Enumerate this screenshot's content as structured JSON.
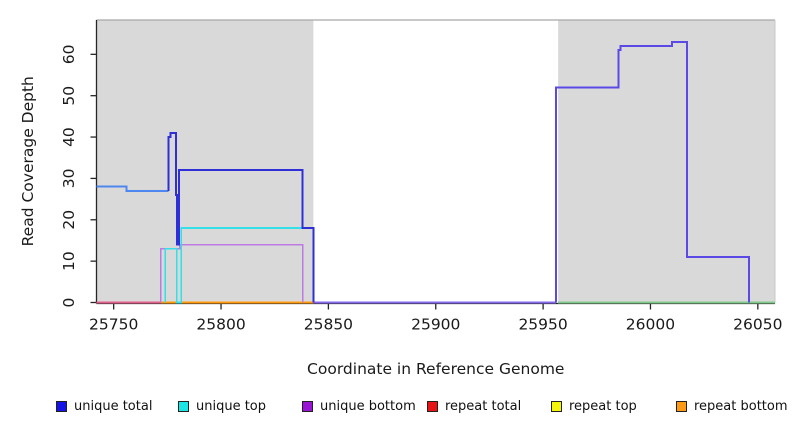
{
  "chart_data": {
    "type": "line",
    "title": "",
    "xlabel": "Coordinate in Reference Genome",
    "ylabel": "Read Coverage Depth",
    "xlim": [
      25742,
      26058
    ],
    "ylim": [
      0,
      68.3
    ],
    "x_ticks": [
      25750,
      25800,
      25850,
      25900,
      25950,
      26000,
      26050
    ],
    "y_ticks": [
      0,
      10,
      20,
      30,
      40,
      50,
      60
    ],
    "grid": false,
    "legend_position": "bottom",
    "shade_color": "#d9d9d9",
    "shaded_regions": [
      {
        "from": 25742,
        "to": 25843
      },
      {
        "from": 25957,
        "to": 26058
      }
    ],
    "series": [
      {
        "label": "unique total",
        "color": "#0000ee",
        "steps": [
          [
            25742,
            28
          ],
          [
            25756,
            27
          ],
          [
            25775.5,
            40
          ],
          [
            25776.5,
            41
          ],
          [
            25779,
            26
          ],
          [
            25779.6,
            14
          ],
          [
            25780.5,
            32
          ],
          [
            25838,
            18
          ],
          [
            25843,
            0
          ],
          [
            25956,
            52
          ],
          [
            25985,
            61
          ],
          [
            25986,
            62
          ],
          [
            26010,
            63
          ],
          [
            26017,
            11
          ],
          [
            26046,
            0
          ],
          [
            26058,
            0
          ]
        ]
      },
      {
        "label": "unique top",
        "color": "#00e6e6",
        "steps": [
          [
            25742,
            0
          ],
          [
            25774,
            13
          ],
          [
            25779.3,
            0
          ],
          [
            25781.4,
            18
          ],
          [
            25843,
            0
          ],
          [
            26058,
            0
          ]
        ]
      },
      {
        "label": "unique bottom",
        "color": "#9400d3",
        "steps": [
          [
            25742,
            0
          ],
          [
            25772,
            13
          ],
          [
            25780.8,
            14
          ],
          [
            25838,
            0
          ],
          [
            25956,
            52
          ],
          [
            25985,
            61
          ],
          [
            25986,
            62
          ],
          [
            26010,
            63
          ],
          [
            26017,
            11
          ],
          [
            26046,
            0
          ],
          [
            26058,
            0
          ]
        ]
      },
      {
        "label": "repeat total",
        "color": "#e60000",
        "steps": [
          [
            25742,
            0
          ],
          [
            26058,
            0
          ]
        ]
      },
      {
        "label": "repeat top",
        "color": "#ffff00",
        "steps": [
          [
            25742,
            0
          ],
          [
            26058,
            0
          ]
        ]
      },
      {
        "label": "repeat bottom",
        "color": "#ff9900",
        "steps": [
          [
            25742,
            0
          ],
          [
            26058,
            0
          ]
        ]
      }
    ],
    "render_lines": [
      {
        "name": "baseline-left-pink",
        "color": "#e2608c",
        "width": 1.6,
        "points": [
          [
            25742,
            0
          ],
          [
            25772,
            0
          ]
        ]
      },
      {
        "name": "baseline-orange",
        "color": "#ff9a0f",
        "width": 1.6,
        "points": [
          [
            25772,
            0
          ],
          [
            25843,
            0
          ]
        ]
      },
      {
        "name": "baseline-mid-violet",
        "color": "#8468ec",
        "width": 1.6,
        "points": [
          [
            25843,
            0
          ],
          [
            25956,
            0
          ]
        ]
      },
      {
        "name": "baseline-right-green",
        "color": "#82c98c",
        "width": 1.6,
        "points": [
          [
            25957,
            0
          ],
          [
            26058,
            0
          ]
        ]
      },
      {
        "name": "unique-bottom",
        "color": "#bd7ae3",
        "width": 1.6,
        "points": [
          [
            25772,
            0
          ],
          [
            25772,
            13
          ],
          [
            25780.8,
            13
          ],
          [
            25780.8,
            14
          ],
          [
            25838,
            14
          ],
          [
            25838,
            0
          ]
        ]
      },
      {
        "name": "unique-top",
        "color": "#35dfe8",
        "width": 1.6,
        "points": [
          [
            25774,
            0
          ],
          [
            25774,
            13
          ],
          [
            25779.3,
            13
          ],
          [
            25779.3,
            0
          ],
          [
            25781.4,
            0
          ],
          [
            25781.4,
            18
          ],
          [
            25843,
            18
          ],
          [
            25843,
            0
          ]
        ]
      },
      {
        "name": "unique-total-left",
        "color": "#4e86ef",
        "width": 2,
        "points": [
          [
            25742,
            28
          ],
          [
            25756,
            28
          ],
          [
            25756,
            27
          ],
          [
            25775.5,
            27
          ]
        ]
      },
      {
        "name": "unique-total-mid",
        "color": "#2f2fd8",
        "width": 2,
        "points": [
          [
            25775.5,
            27
          ],
          [
            25775.5,
            40
          ],
          [
            25776.5,
            40
          ],
          [
            25776.5,
            41
          ],
          [
            25779,
            41
          ],
          [
            25779,
            26
          ],
          [
            25779.6,
            26
          ],
          [
            25779.6,
            14
          ],
          [
            25780.5,
            14
          ],
          [
            25780.5,
            32
          ],
          [
            25838,
            32
          ],
          [
            25838,
            18
          ],
          [
            25843,
            18
          ],
          [
            25843,
            0
          ]
        ]
      },
      {
        "name": "unique-total-right",
        "color": "#5b49e6",
        "width": 2,
        "points": [
          [
            25956,
            0
          ],
          [
            25956,
            52
          ],
          [
            25985,
            52
          ],
          [
            25985,
            61
          ],
          [
            25986,
            61
          ],
          [
            25986,
            62
          ],
          [
            26010,
            62
          ],
          [
            26010,
            63
          ],
          [
            26017,
            63
          ],
          [
            26017,
            11
          ],
          [
            26046,
            11
          ],
          [
            26046,
            0
          ]
        ]
      }
    ]
  },
  "legend": {
    "items": [
      {
        "label": "unique total",
        "color": "#1414e6"
      },
      {
        "label": "unique top",
        "color": "#1ae6e6"
      },
      {
        "label": "unique bottom",
        "color": "#9a14d6"
      },
      {
        "label": "repeat total",
        "color": "#e61414"
      },
      {
        "label": "repeat top",
        "color": "#f5f50a"
      },
      {
        "label": "repeat bottom",
        "color": "#ff9a14"
      }
    ]
  },
  "axis": {
    "line_color": "#262626",
    "box_top_color": "#a8a8a8",
    "box_right_color": "#c9c9c9",
    "text_color": "#1a1a1a"
  }
}
